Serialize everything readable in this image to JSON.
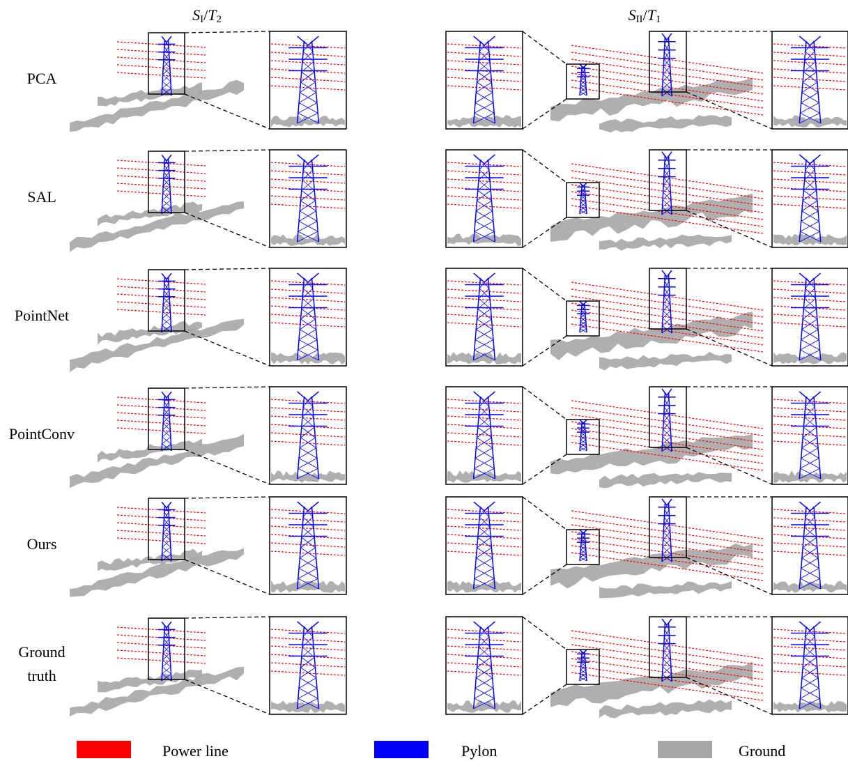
{
  "columns": [
    {
      "parts": [
        "S",
        "I",
        "/",
        "T",
        "2"
      ]
    },
    {
      "parts": [
        "S",
        "II",
        "/",
        "T",
        "1"
      ]
    }
  ],
  "rows": [
    {
      "lines": [
        "PCA"
      ]
    },
    {
      "lines": [
        "SAL"
      ]
    },
    {
      "lines": [
        "PointNet"
      ]
    },
    {
      "lines": [
        "PointConv"
      ]
    },
    {
      "lines": [
        "Ours"
      ]
    },
    {
      "lines": [
        "Ground",
        "truth"
      ]
    }
  ],
  "legend": [
    {
      "name": "Power line",
      "color": "#ff0000"
    },
    {
      "name": "Pylon",
      "color": "#0000ff"
    },
    {
      "name": "Ground",
      "color": "#a6a6a6"
    }
  ]
}
